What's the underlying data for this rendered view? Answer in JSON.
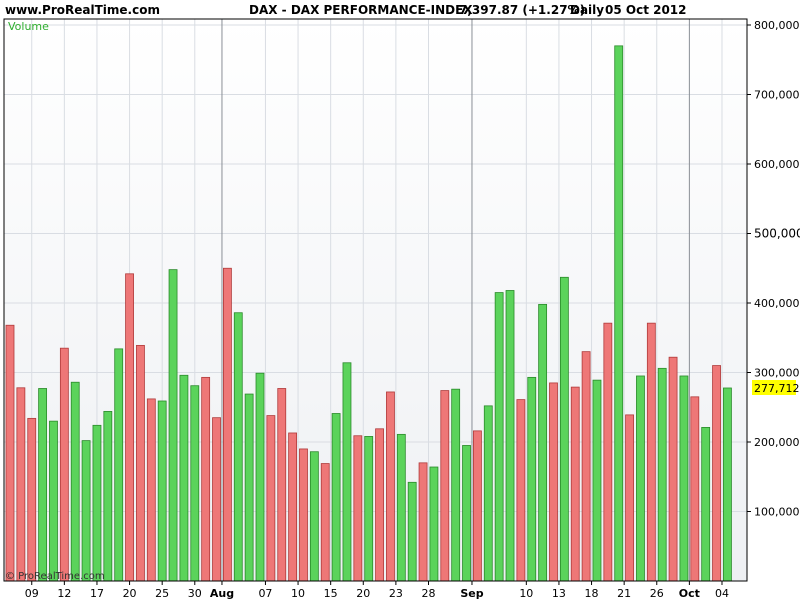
{
  "header": {
    "site": "www.ProRealTime.com",
    "instrument": "DAX - DAX PERFORMANCE-INDEX",
    "quote": "7,397.87 (+1.27%)",
    "period": "Daily",
    "date": "05 Oct 2012"
  },
  "watermark": "© ProRealTime.com",
  "colors": {
    "up": "#5bd35b",
    "down": "#ee7777",
    "background_top": "#ffffff",
    "background_bottom": "#eef0f3",
    "last_value_badge": "#ffff00"
  },
  "chart_data": {
    "type": "bar",
    "series_label": "Volume",
    "ylim": [
      0,
      800000
    ],
    "ytick_labels": [
      "100,000",
      "200,000",
      "300,000",
      "400,000",
      "500,000",
      "600,000",
      "700,000",
      "800,000"
    ],
    "last_value_label": "277,712",
    "last_value": 277712,
    "grid": true,
    "values": [
      368000,
      278000,
      234000,
      277000,
      230000,
      335000,
      286000,
      202000,
      224000,
      244000,
      334000,
      442000,
      339000,
      262000,
      259000,
      448000,
      296000,
      281000,
      293000,
      235000,
      450000,
      386000,
      269000,
      299000,
      238000,
      277000,
      213000,
      190000,
      186000,
      169000,
      241000,
      314000,
      209000,
      208000,
      219000,
      272000,
      211000,
      142000,
      170000,
      164000,
      274000,
      276000,
      195000,
      216000,
      252000,
      415000,
      418000,
      261000,
      293000,
      398000,
      285000,
      437000,
      279000,
      330000,
      289000,
      371000,
      770000,
      239000,
      295000,
      371000,
      306000,
      322000,
      295000,
      265000,
      221000,
      310000,
      277712
    ],
    "directions": [
      "down",
      "down",
      "down",
      "up",
      "up",
      "down",
      "up",
      "up",
      "up",
      "up",
      "up",
      "down",
      "down",
      "down",
      "up",
      "up",
      "up",
      "up",
      "down",
      "down",
      "down",
      "up",
      "up",
      "up",
      "down",
      "down",
      "down",
      "down",
      "up",
      "down",
      "up",
      "up",
      "down",
      "up",
      "down",
      "down",
      "up",
      "up",
      "down",
      "up",
      "down",
      "up",
      "up",
      "down",
      "up",
      "up",
      "up",
      "down",
      "up",
      "up",
      "down",
      "up",
      "down",
      "down",
      "up",
      "down",
      "up",
      "down",
      "up",
      "down",
      "up",
      "down",
      "up",
      "down",
      "up",
      "down",
      "up"
    ],
    "xtick_labels": [
      {
        "label": "09",
        "index": 2,
        "major": false
      },
      {
        "label": "12",
        "index": 5,
        "major": false
      },
      {
        "label": "17",
        "index": 8,
        "major": false
      },
      {
        "label": "20",
        "index": 11,
        "major": false
      },
      {
        "label": "25",
        "index": 14,
        "major": false
      },
      {
        "label": "30",
        "index": 17,
        "major": false
      },
      {
        "label": "Aug",
        "index": 19.5,
        "major": true
      },
      {
        "label": "07",
        "index": 23.5,
        "major": false
      },
      {
        "label": "10",
        "index": 26.5,
        "major": false
      },
      {
        "label": "15",
        "index": 29.5,
        "major": false
      },
      {
        "label": "20",
        "index": 32.5,
        "major": false
      },
      {
        "label": "23",
        "index": 35.5,
        "major": false
      },
      {
        "label": "28",
        "index": 38.5,
        "major": false
      },
      {
        "label": "Sep",
        "index": 42.5,
        "major": true
      },
      {
        "label": "10",
        "index": 47.5,
        "major": false
      },
      {
        "label": "13",
        "index": 50.5,
        "major": false
      },
      {
        "label": "18",
        "index": 53.5,
        "major": false
      },
      {
        "label": "21",
        "index": 56.5,
        "major": false
      },
      {
        "label": "26",
        "index": 59.5,
        "major": false
      },
      {
        "label": "Oct",
        "index": 62.5,
        "major": true
      },
      {
        "label": "04",
        "index": 65.5,
        "major": false
      }
    ]
  }
}
